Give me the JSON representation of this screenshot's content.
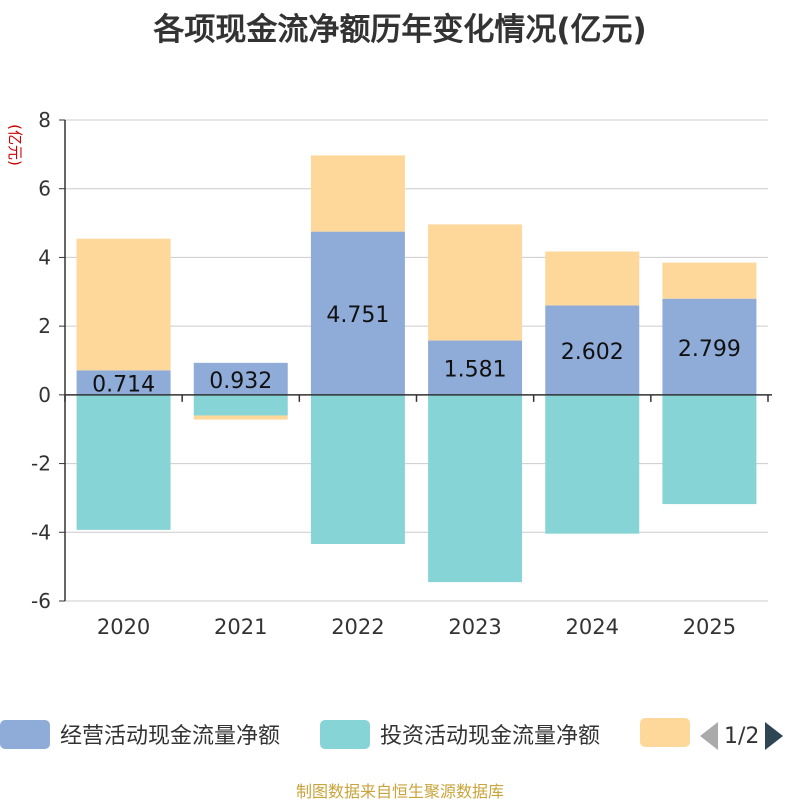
{
  "chart_data": {
    "type": "bar",
    "stacked": true,
    "title": "各项现金流净额历年变化情况(亿元)",
    "ylabel": "(亿元)",
    "ylim": [
      -6,
      8
    ],
    "yticks": [
      -6,
      -4,
      -2,
      0,
      2,
      4,
      6,
      8
    ],
    "categories": [
      "2020",
      "2021",
      "2022",
      "2023",
      "2024",
      "2025"
    ],
    "series": [
      {
        "name": "经营活动现金流量净额",
        "color": "#8facd9",
        "values": [
          0.714,
          0.932,
          4.751,
          1.581,
          2.602,
          2.799
        ],
        "labels": [
          "0.714",
          "0.932",
          "4.751",
          "1.581",
          "2.602",
          "2.799"
        ]
      },
      {
        "name": "投资活动现金流量净额",
        "color": "#87d4d6",
        "values": [
          -3.93,
          -0.6,
          -4.34,
          -5.45,
          -4.04,
          -3.18
        ]
      },
      {
        "name": "",
        "color": "#fdd89a",
        "values": [
          3.83,
          -0.12,
          2.22,
          3.38,
          1.57,
          1.05
        ]
      }
    ],
    "legend_position": "bottom"
  },
  "legend": {
    "page_text": "1/2"
  },
  "footer": "制图数据来自恒生聚源数据库"
}
